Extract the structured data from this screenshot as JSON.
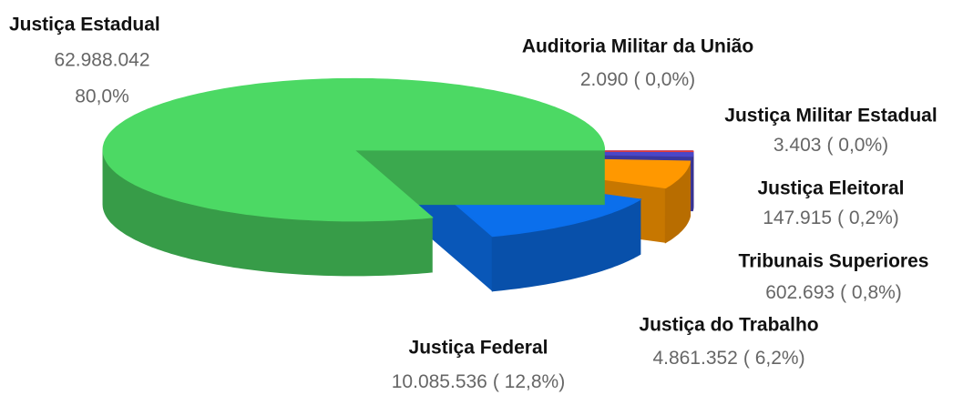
{
  "chart_data": {
    "type": "pie3d",
    "categories": [
      "Justiça Estadual",
      "Auditoria Militar da União",
      "Justiça Militar Estadual",
      "Justiça Eleitoral",
      "Tribunais Superiores",
      "Justiça do Trabalho",
      "Justiça Federal"
    ],
    "values": [
      62988042,
      2090,
      3403,
      147915,
      602693,
      4861352,
      10085536
    ],
    "value_labels": [
      "62.988.042",
      "2.090",
      "3.403",
      "147.915",
      "602.693",
      "4.861.352",
      "10.085.536"
    ],
    "percents": [
      80.0,
      0.0,
      0.0,
      0.2,
      0.8,
      6.2,
      12.8
    ],
    "percent_labels": [
      "80,0%",
      "( 0,0%)",
      "( 0,0%)",
      "( 0,2%)",
      "( 0,8%)",
      "( 6,2%)",
      "( 12,8%)"
    ],
    "colors": [
      "#4cd964",
      "#d32f2f",
      "#7b3fb0",
      "#e53935",
      "#4a47c8",
      "#ff9800",
      "#0b6fec"
    ]
  }
}
